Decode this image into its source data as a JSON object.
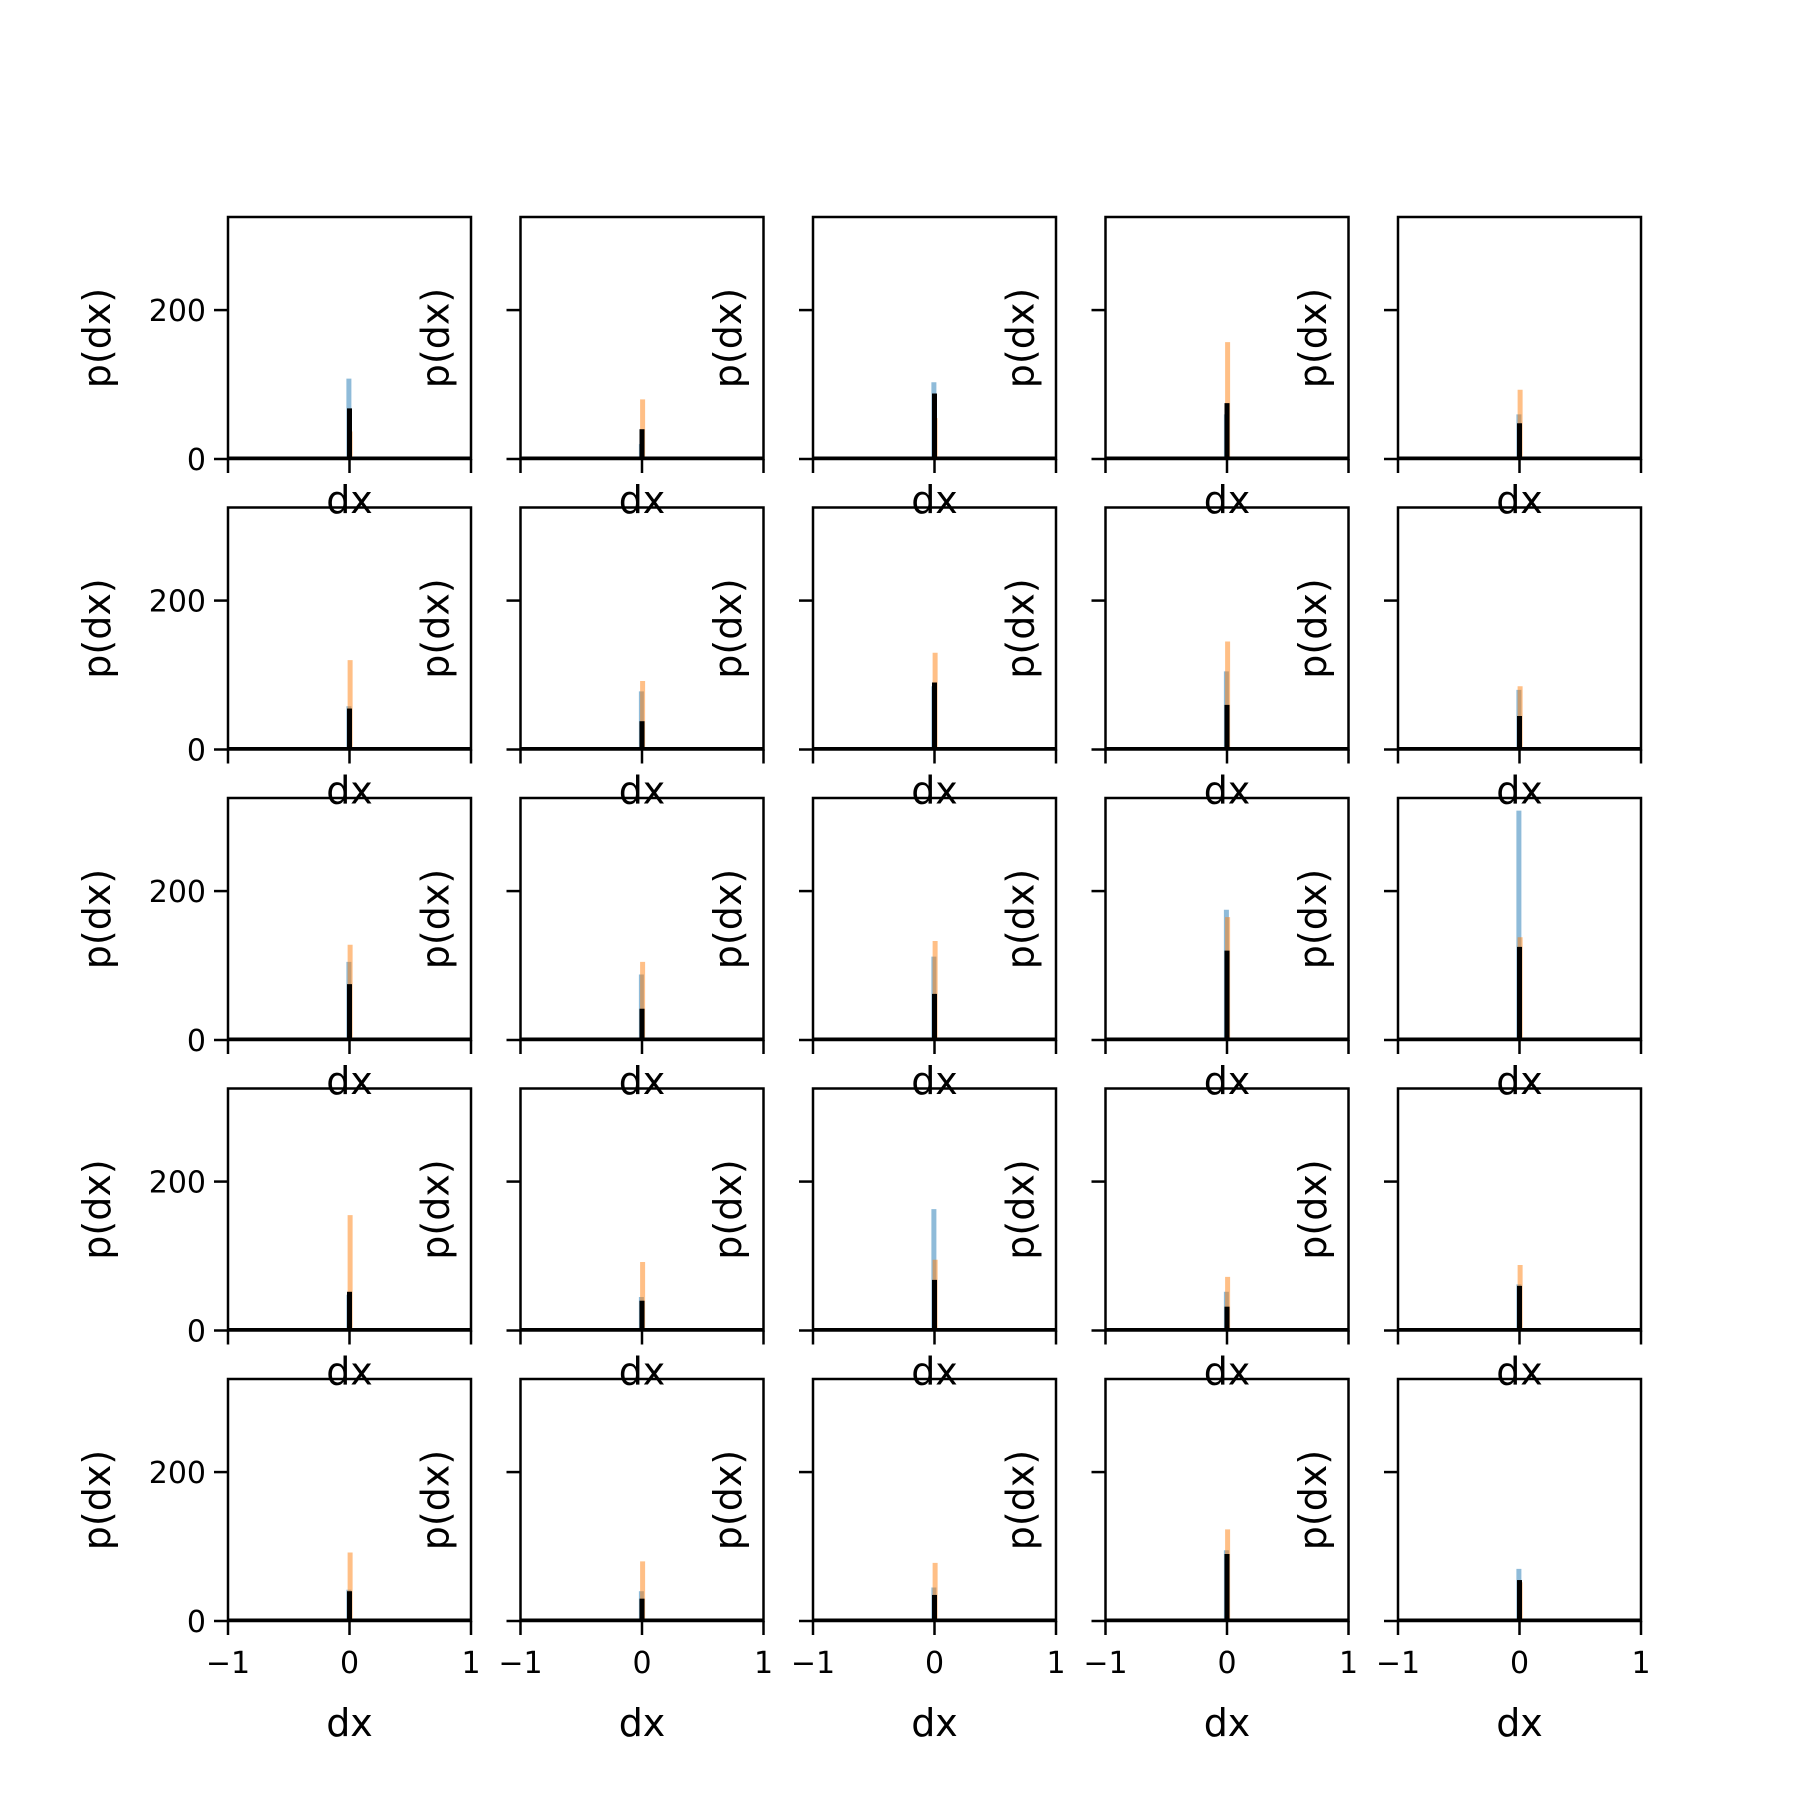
{
  "chart_data": {
    "type": "histogram-grid",
    "rows": 5,
    "cols": 5,
    "xlabel": "dx",
    "ylabel": "p(dx)",
    "xlim": [
      -1,
      1
    ],
    "ylim": [
      0,
      325
    ],
    "x_ticks": [
      -1,
      0,
      1
    ],
    "x_tick_labels": [
      "−1",
      "0",
      "1"
    ],
    "y_ticks": [
      0,
      200
    ],
    "y_tick_labels": [
      "0",
      "200"
    ],
    "grid": false,
    "colors": {
      "series_a": "#1f77b4",
      "series_b": "#ff7f0e",
      "series_c": "#000000"
    },
    "panels": [
      {
        "peaks": [
          {
            "x": -0.005,
            "h": 108,
            "s": "a"
          },
          {
            "x": 0.005,
            "h": 37,
            "s": "b"
          },
          {
            "x": 0.0,
            "h": 68,
            "s": "c"
          }
        ]
      },
      {
        "peaks": [
          {
            "x": -0.005,
            "h": 20,
            "s": "a"
          },
          {
            "x": 0.005,
            "h": 80,
            "s": "b"
          },
          {
            "x": 0.0,
            "h": 40,
            "s": "c"
          }
        ]
      },
      {
        "peaks": [
          {
            "x": -0.005,
            "h": 103,
            "s": "a"
          },
          {
            "x": 0.005,
            "h": 55,
            "s": "b"
          },
          {
            "x": 0.0,
            "h": 88,
            "s": "c"
          }
        ]
      },
      {
        "peaks": [
          {
            "x": -0.005,
            "h": 60,
            "s": "a"
          },
          {
            "x": 0.005,
            "h": 157,
            "s": "b"
          },
          {
            "x": 0.0,
            "h": 75,
            "s": "c"
          }
        ]
      },
      {
        "peaks": [
          {
            "x": -0.005,
            "h": 60,
            "s": "a"
          },
          {
            "x": 0.005,
            "h": 93,
            "s": "b"
          },
          {
            "x": 0.0,
            "h": 48,
            "s": "c"
          }
        ]
      },
      {
        "peaks": [
          {
            "x": -0.005,
            "h": 58,
            "s": "a"
          },
          {
            "x": 0.005,
            "h": 120,
            "s": "b"
          },
          {
            "x": 0.0,
            "h": 55,
            "s": "c"
          }
        ]
      },
      {
        "peaks": [
          {
            "x": -0.005,
            "h": 78,
            "s": "a"
          },
          {
            "x": 0.005,
            "h": 92,
            "s": "b"
          },
          {
            "x": 0.0,
            "h": 38,
            "s": "c"
          }
        ]
      },
      {
        "peaks": [
          {
            "x": -0.005,
            "h": 85,
            "s": "a"
          },
          {
            "x": 0.005,
            "h": 130,
            "s": "b"
          },
          {
            "x": 0.0,
            "h": 90,
            "s": "c"
          }
        ]
      },
      {
        "peaks": [
          {
            "x": -0.005,
            "h": 105,
            "s": "a"
          },
          {
            "x": 0.005,
            "h": 145,
            "s": "b"
          },
          {
            "x": 0.0,
            "h": 60,
            "s": "c"
          }
        ]
      },
      {
        "peaks": [
          {
            "x": -0.005,
            "h": 80,
            "s": "a"
          },
          {
            "x": 0.005,
            "h": 85,
            "s": "b"
          },
          {
            "x": 0.0,
            "h": 45,
            "s": "c"
          }
        ]
      },
      {
        "peaks": [
          {
            "x": -0.005,
            "h": 105,
            "s": "a"
          },
          {
            "x": 0.005,
            "h": 128,
            "s": "b"
          },
          {
            "x": 0.0,
            "h": 75,
            "s": "c"
          }
        ]
      },
      {
        "peaks": [
          {
            "x": -0.005,
            "h": 88,
            "s": "a"
          },
          {
            "x": 0.005,
            "h": 105,
            "s": "b"
          },
          {
            "x": 0.0,
            "h": 42,
            "s": "c"
          }
        ]
      },
      {
        "peaks": [
          {
            "x": -0.005,
            "h": 112,
            "s": "a"
          },
          {
            "x": 0.005,
            "h": 133,
            "s": "b"
          },
          {
            "x": 0.0,
            "h": 62,
            "s": "c"
          }
        ]
      },
      {
        "peaks": [
          {
            "x": -0.005,
            "h": 175,
            "s": "a"
          },
          {
            "x": 0.005,
            "h": 165,
            "s": "b"
          },
          {
            "x": 0.0,
            "h": 120,
            "s": "c"
          }
        ]
      },
      {
        "peaks": [
          {
            "x": -0.005,
            "h": 308,
            "s": "a"
          },
          {
            "x": 0.005,
            "h": 138,
            "s": "b"
          },
          {
            "x": 0.0,
            "h": 125,
            "s": "c"
          }
        ]
      },
      {
        "peaks": [
          {
            "x": -0.005,
            "h": 48,
            "s": "a"
          },
          {
            "x": 0.005,
            "h": 155,
            "s": "b"
          },
          {
            "x": 0.0,
            "h": 52,
            "s": "c"
          }
        ]
      },
      {
        "peaks": [
          {
            "x": -0.005,
            "h": 45,
            "s": "a"
          },
          {
            "x": 0.005,
            "h": 92,
            "s": "b"
          },
          {
            "x": 0.0,
            "h": 40,
            "s": "c"
          }
        ]
      },
      {
        "peaks": [
          {
            "x": -0.005,
            "h": 163,
            "s": "a"
          },
          {
            "x": 0.005,
            "h": 95,
            "s": "b"
          },
          {
            "x": 0.0,
            "h": 68,
            "s": "c"
          }
        ]
      },
      {
        "peaks": [
          {
            "x": -0.005,
            "h": 52,
            "s": "a"
          },
          {
            "x": 0.005,
            "h": 72,
            "s": "b"
          },
          {
            "x": 0.0,
            "h": 32,
            "s": "c"
          }
        ]
      },
      {
        "peaks": [
          {
            "x": -0.005,
            "h": 62,
            "s": "a"
          },
          {
            "x": 0.005,
            "h": 88,
            "s": "b"
          },
          {
            "x": 0.0,
            "h": 60,
            "s": "c"
          }
        ]
      },
      {
        "peaks": [
          {
            "x": -0.005,
            "h": 42,
            "s": "a"
          },
          {
            "x": 0.005,
            "h": 92,
            "s": "b"
          },
          {
            "x": 0.0,
            "h": 40,
            "s": "c"
          }
        ]
      },
      {
        "peaks": [
          {
            "x": -0.005,
            "h": 40,
            "s": "a"
          },
          {
            "x": 0.005,
            "h": 80,
            "s": "b"
          },
          {
            "x": 0.0,
            "h": 30,
            "s": "c"
          }
        ]
      },
      {
        "peaks": [
          {
            "x": -0.005,
            "h": 45,
            "s": "a"
          },
          {
            "x": 0.005,
            "h": 78,
            "s": "b"
          },
          {
            "x": 0.0,
            "h": 35,
            "s": "c"
          }
        ]
      },
      {
        "peaks": [
          {
            "x": -0.005,
            "h": 95,
            "s": "a"
          },
          {
            "x": 0.005,
            "h": 123,
            "s": "b"
          },
          {
            "x": 0.0,
            "h": 90,
            "s": "c"
          }
        ]
      },
      {
        "peaks": [
          {
            "x": -0.005,
            "h": 70,
            "s": "a"
          },
          {
            "x": 0.005,
            "h": 52,
            "s": "b"
          },
          {
            "x": 0.0,
            "h": 55,
            "s": "c"
          }
        ]
      }
    ]
  }
}
